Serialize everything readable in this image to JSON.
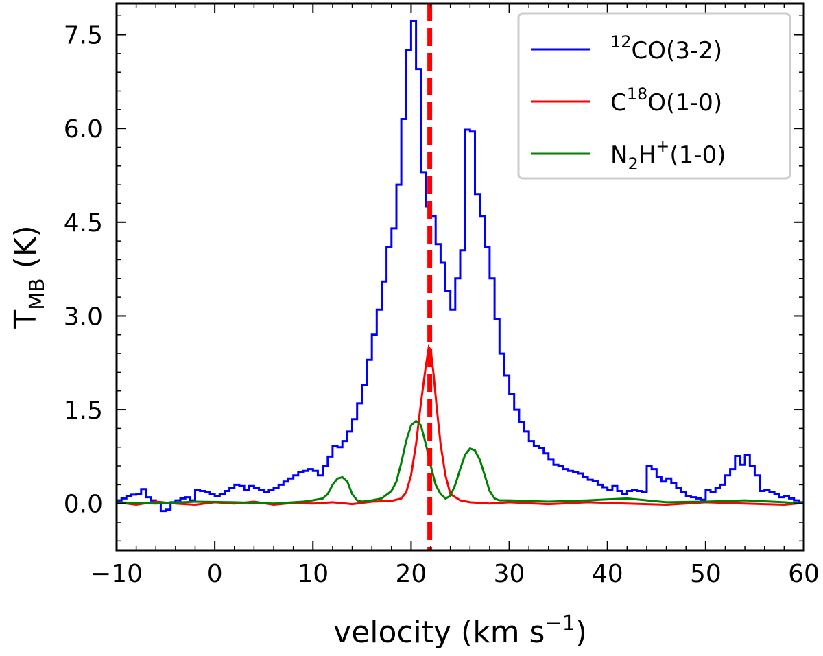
{
  "chart_data": {
    "type": "line",
    "xlabel": "velocity (km s",
    "xlabel_sup": "−1",
    "xlabel_end": ")",
    "ylabel_main": "T",
    "ylabel_sub": "MB",
    "ylabel_end": " (K)",
    "xlim": [
      -10,
      60
    ],
    "ylim": [
      -0.75,
      8.0
    ],
    "xticks": [
      -10,
      0,
      10,
      20,
      30,
      40,
      50,
      60
    ],
    "xtick_labels": [
      "−10",
      "0",
      "10",
      "20",
      "30",
      "40",
      "50",
      "60"
    ],
    "yticks": [
      0.0,
      1.5,
      3.0,
      4.5,
      6.0,
      7.5
    ],
    "ytick_labels": [
      "0.0",
      "1.5",
      "3.0",
      "4.5",
      "6.0",
      "7.5"
    ],
    "vline": {
      "x": 21.9,
      "color": "#ff0000",
      "style": "dashed"
    },
    "legend": {
      "placement": "top-right",
      "entries": [
        {
          "pre": "",
          "sup": "12",
          "mid": "CO(3-2)",
          "sub": "",
          "sup2": "",
          "post": "",
          "color": "#0000ff"
        },
        {
          "pre": "C",
          "sup": "18",
          "mid": "O(1-0)",
          "sub": "",
          "sup2": "",
          "post": "",
          "color": "#ff0000"
        },
        {
          "pre": "N",
          "sup": "",
          "mid": "",
          "sub": "2",
          "sup2": "+",
          "post": "H",
          "tail": "(1-0)",
          "color": "#008000"
        }
      ]
    },
    "series": [
      {
        "name": "12CO(3-2)",
        "color": "#0000ff",
        "step": true,
        "x": [
          -10,
          -9.5,
          -9,
          -8.5,
          -8,
          -7.5,
          -7,
          -6.5,
          -6,
          -5.5,
          -5,
          -4.5,
          -4,
          -3.5,
          -3,
          -2.5,
          -2,
          -1.5,
          -1,
          -0.5,
          0,
          0.5,
          1,
          1.5,
          2,
          2.5,
          3,
          3.5,
          4,
          4.5,
          5,
          5.5,
          6,
          6.5,
          7,
          7.5,
          8,
          8.5,
          9,
          9.5,
          10,
          10.5,
          11,
          11.5,
          12,
          12.5,
          13,
          13.5,
          14,
          14.5,
          15,
          15.5,
          16,
          16.5,
          17,
          17.5,
          18,
          18.5,
          19,
          19.5,
          20,
          20.5,
          21,
          21.5,
          22,
          22.5,
          23,
          23.5,
          24,
          24.5,
          25,
          25.5,
          26,
          26.5,
          27,
          27.5,
          28,
          28.5,
          29,
          29.5,
          30,
          30.5,
          31,
          31.5,
          32,
          32.5,
          33,
          33.5,
          34,
          34.5,
          35,
          35.5,
          36,
          36.5,
          37,
          37.5,
          38,
          38.5,
          39,
          39.5,
          40,
          40.5,
          41,
          41.5,
          42,
          42.5,
          43,
          43.5,
          44,
          44.5,
          45,
          45.5,
          46,
          46.5,
          47,
          47.5,
          48,
          48.5,
          49,
          49.5,
          50,
          50.5,
          51,
          51.5,
          52,
          52.5,
          53,
          53.5,
          54,
          54.5,
          55,
          55.5,
          56,
          56.5,
          57,
          57.5,
          58,
          58.5,
          59,
          59.5
        ],
        "y": [
          0.05,
          0.08,
          0.12,
          0.14,
          0.15,
          0.23,
          0.1,
          0.05,
          0.02,
          -0.12,
          -0.1,
          0.02,
          0.05,
          0.08,
          0.1,
          0.05,
          0.22,
          0.2,
          0.18,
          0.15,
          0.12,
          0.15,
          0.2,
          0.25,
          0.3,
          0.28,
          0.22,
          0.28,
          0.25,
          0.22,
          0.18,
          0.22,
          0.25,
          0.3,
          0.35,
          0.4,
          0.45,
          0.5,
          0.52,
          0.55,
          0.52,
          0.45,
          0.6,
          0.75,
          0.92,
          0.9,
          1.0,
          1.15,
          1.35,
          1.6,
          1.9,
          2.3,
          2.7,
          3.1,
          3.55,
          4.1,
          4.4,
          5.1,
          6.15,
          7.25,
          7.72,
          6.95,
          5.3,
          4.75,
          4.6,
          4.15,
          3.85,
          3.4,
          3.1,
          3.6,
          4.05,
          5.98,
          5.95,
          4.95,
          4.6,
          4.1,
          3.6,
          2.95,
          2.4,
          2.05,
          1.75,
          1.5,
          1.3,
          1.15,
          1.0,
          0.92,
          0.88,
          0.8,
          0.7,
          0.62,
          0.6,
          0.55,
          0.52,
          0.5,
          0.48,
          0.42,
          0.38,
          0.36,
          0.3,
          0.26,
          0.22,
          0.28,
          0.2,
          0.15,
          0.2,
          0.22,
          0.2,
          0.18,
          0.6,
          0.55,
          0.42,
          0.35,
          0.4,
          0.32,
          0.25,
          0.18,
          0.12,
          0.1,
          0.08,
          0.06,
          0.22,
          0.18,
          0.25,
          0.3,
          0.45,
          0.55,
          0.76,
          0.62,
          0.77,
          0.6,
          0.45,
          0.2,
          0.22,
          0.18,
          0.15,
          0.1,
          0.12,
          0.08,
          0.05,
          0.02
        ]
      },
      {
        "name": "C18O(1-0)",
        "color": "#ff0000",
        "step": false,
        "x": [
          -10,
          -8,
          -6,
          -4,
          -2,
          0,
          2,
          4,
          6,
          8,
          10,
          12,
          14,
          16,
          18,
          19,
          19.5,
          20,
          20.5,
          21,
          21.5,
          21.8,
          22,
          22.3,
          22.6,
          23,
          23.5,
          24,
          25,
          26,
          28,
          30,
          34,
          38,
          42,
          46,
          50,
          54,
          58,
          60
        ],
        "y": [
          0.02,
          -0.02,
          0.03,
          0.0,
          -0.02,
          0.02,
          0.0,
          0.03,
          -0.02,
          0.01,
          0.0,
          0.02,
          -0.01,
          0.03,
          0.04,
          0.08,
          0.18,
          0.45,
          0.95,
          1.6,
          2.2,
          2.5,
          2.45,
          2.05,
          1.55,
          0.95,
          0.45,
          0.15,
          0.05,
          0.02,
          0.0,
          0.02,
          -0.01,
          0.02,
          0.0,
          -0.02,
          0.02,
          0.0,
          -0.02,
          0.01
        ]
      },
      {
        "name": "N2H+(1-0)",
        "color": "#008000",
        "step": false,
        "x": [
          -10,
          -6,
          -2,
          2,
          6,
          9,
          10,
          11,
          11.5,
          12,
          12.5,
          13,
          13.5,
          14,
          14.5,
          15,
          16,
          17,
          18,
          18.5,
          19,
          19.5,
          20,
          20.5,
          21,
          21.5,
          22,
          22.5,
          23,
          23.5,
          24,
          24.5,
          25,
          25.5,
          26,
          26.5,
          27,
          27.5,
          28,
          28.5,
          29,
          30,
          34,
          38,
          42,
          46,
          50,
          54,
          58,
          60
        ],
        "y": [
          0.02,
          0.0,
          0.03,
          0.02,
          0.0,
          0.03,
          0.05,
          0.08,
          0.15,
          0.3,
          0.4,
          0.42,
          0.35,
          0.15,
          0.05,
          0.03,
          0.05,
          0.08,
          0.2,
          0.35,
          0.65,
          1.0,
          1.25,
          1.32,
          1.25,
          0.95,
          0.6,
          0.3,
          0.15,
          0.08,
          0.12,
          0.3,
          0.55,
          0.78,
          0.88,
          0.85,
          0.7,
          0.45,
          0.2,
          0.08,
          0.05,
          0.05,
          0.03,
          0.05,
          0.08,
          0.02,
          0.03,
          0.05,
          0.02,
          0.0
        ]
      }
    ]
  }
}
